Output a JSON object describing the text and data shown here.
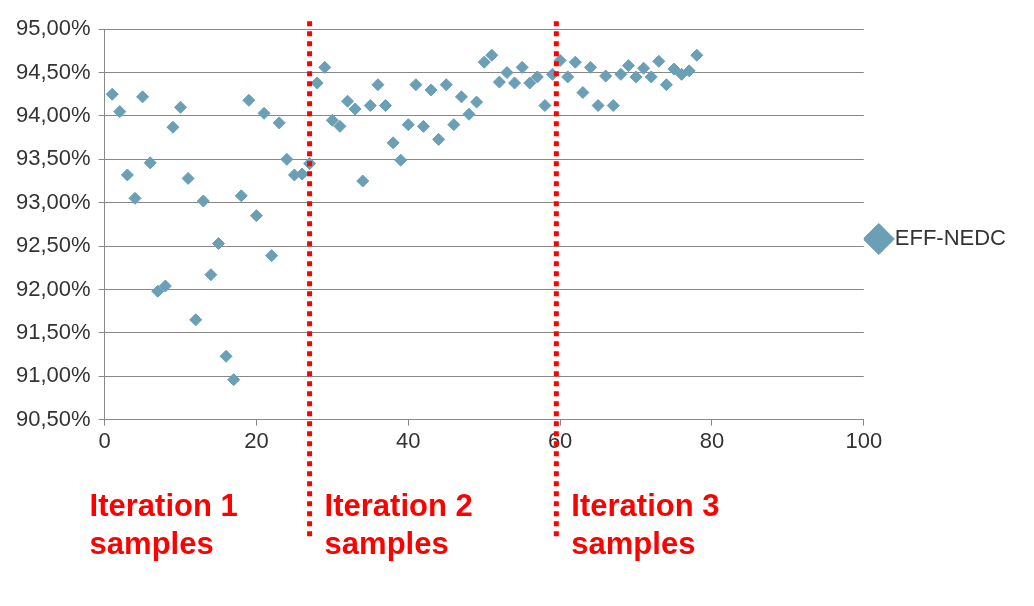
{
  "chart_data": {
    "type": "scatter",
    "x": [
      1,
      2,
      3,
      4,
      5,
      6,
      7,
      8,
      9,
      10,
      11,
      12,
      13,
      14,
      15,
      16,
      17,
      18,
      19,
      20,
      21,
      22,
      23,
      24,
      25,
      26,
      27,
      28,
      29,
      30,
      31,
      32,
      33,
      34,
      35,
      36,
      37,
      38,
      39,
      40,
      41,
      42,
      43,
      44,
      45,
      46,
      47,
      48,
      49,
      50,
      51,
      52,
      53,
      54,
      55,
      56,
      57,
      58,
      59,
      60,
      61,
      62,
      63,
      64,
      65,
      66,
      67,
      68,
      69,
      70,
      71,
      72,
      73,
      74,
      75,
      76,
      77,
      78
    ],
    "series": [
      {
        "name": "EFF-NEDC",
        "color": "#6a9fb5",
        "values": [
          94.25,
          94.05,
          93.32,
          93.05,
          94.22,
          93.46,
          91.98,
          92.04,
          93.87,
          94.1,
          93.28,
          91.65,
          93.02,
          92.17,
          92.53,
          91.23,
          90.96,
          93.08,
          94.18,
          92.85,
          94.03,
          92.39,
          93.92,
          93.5,
          93.32,
          93.33,
          93.45,
          94.38,
          94.56,
          93.95,
          93.88,
          94.17,
          94.08,
          93.25,
          94.12,
          94.36,
          94.12,
          93.69,
          93.49,
          93.9,
          94.36,
          93.88,
          94.3,
          93.73,
          94.36,
          93.9,
          94.22,
          94.02,
          94.16,
          94.62,
          94.7,
          94.39,
          94.5,
          94.38,
          94.56,
          94.38,
          94.45,
          94.12,
          94.48,
          94.64,
          94.45,
          94.62,
          94.27,
          94.56,
          94.12,
          94.46,
          94.12,
          94.48,
          94.58,
          94.45,
          94.55,
          94.45,
          94.63,
          94.36,
          94.54,
          94.48,
          94.52,
          94.7
        ]
      }
    ],
    "xlim": [
      0,
      100
    ],
    "xticks": [
      0,
      20,
      40,
      60,
      80,
      100
    ],
    "ylim": [
      90.5,
      95
    ],
    "yticks": [
      {
        "value": 90.5,
        "label": "90,50%"
      },
      {
        "value": 91,
        "label": "91,00%"
      },
      {
        "value": 91.5,
        "label": "91,50%"
      },
      {
        "value": 92,
        "label": "92,00%"
      },
      {
        "value": 92.5,
        "label": "92,50%"
      },
      {
        "value": 93,
        "label": "93,00%"
      },
      {
        "value": 93.5,
        "label": "93,50%"
      },
      {
        "value": 94,
        "label": "94,00%"
      },
      {
        "value": 94.5,
        "label": "94,50%"
      },
      {
        "value": 95,
        "label": "95,00%"
      }
    ],
    "grid": "y",
    "legend": "right",
    "marker": "diamond",
    "ref_lines": [
      {
        "axis": "x",
        "value": 27,
        "color": "#ff0000",
        "line_style": "dotted"
      },
      {
        "axis": "x",
        "value": 59.5,
        "color": "#ff0000",
        "line_style": "dotted"
      }
    ],
    "annotations": [
      "Iteration 1 samples",
      "Iteration 2 samples",
      "Iteration 3 samples"
    ]
  }
}
